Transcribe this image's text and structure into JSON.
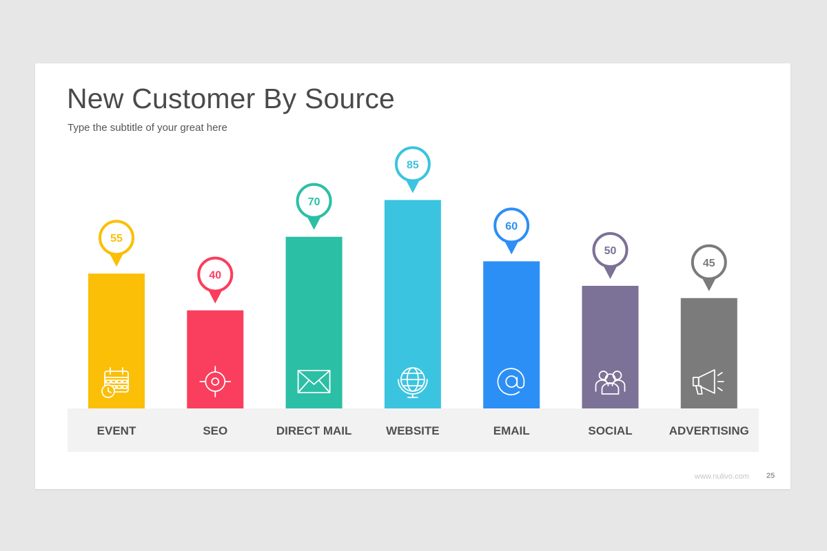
{
  "slide": {
    "title": "New Customer By Source",
    "subtitle": "Type the subtitle of your great here",
    "footer_url": "www.nulivo.com",
    "page_number": "25"
  },
  "chart_data": {
    "type": "bar",
    "categories": [
      "EVENT",
      "SEO",
      "DIRECT MAIL",
      "WEBSITE",
      "EMAIL",
      "SOCIAL",
      "ADVERTISING"
    ],
    "values": [
      55,
      40,
      70,
      85,
      60,
      50,
      45
    ],
    "data_labels": [
      "55",
      "40",
      "70",
      "85",
      "60",
      "50",
      "45"
    ],
    "colors": [
      "#fcbf07",
      "#fa3e5d",
      "#2bbfa6",
      "#3bc4e0",
      "#2c8ff5",
      "#7c7196",
      "#7b7b7b"
    ],
    "icons": [
      "calendar-icon",
      "target-icon",
      "envelope-icon",
      "globe-icon",
      "at-sign-icon",
      "people-icon",
      "megaphone-icon"
    ],
    "label_band_color": "#f2f2f2",
    "grid": false
  }
}
